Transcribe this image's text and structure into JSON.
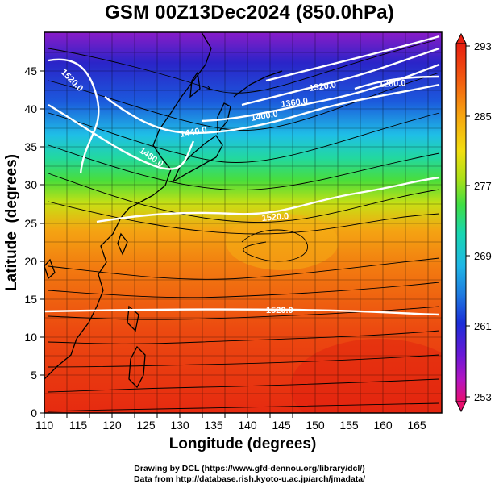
{
  "title": "GSM 00Z13Dec2024 (850.0hPa)",
  "xlabel": "Longitude (degrees)",
  "ylabel": "Latitude  (degrees)",
  "x_ticks": [
    "110",
    "115",
    "120",
    "125",
    "130",
    "135",
    "140",
    "145",
    "150",
    "155",
    "160",
    "165"
  ],
  "y_ticks": [
    "0",
    "5",
    "10",
    "15",
    "20",
    "25",
    "30",
    "35",
    "40",
    "45"
  ],
  "colorbar": {
    "ticks": [
      "293",
      "285",
      "277",
      "269",
      "261",
      "253"
    ],
    "colors": [
      "#e8106e",
      "#b515c0",
      "#6a18d6",
      "#1a2ed8",
      "#1e7be0",
      "#1fb7e6",
      "#18d6b0",
      "#3fde44",
      "#a8e018",
      "#f2de10",
      "#f6a410",
      "#f25a10",
      "#e81e10"
    ]
  },
  "contours": [
    {
      "label": "1520.0"
    },
    {
      "label": "1480.0"
    },
    {
      "label": "1440.0"
    },
    {
      "label": "1400.0"
    },
    {
      "label": "1360.0"
    },
    {
      "label": "1320.0"
    },
    {
      "label": "1280.0"
    },
    {
      "label": "1520.0"
    },
    {
      "label": "1520.0"
    }
  ],
  "credits": {
    "line1": "Drawing by DCL (https://www.gfd-dennou.org/library/dcl/)",
    "line2": "Data from http://database.rish.kyoto-u.ac.jp/arch/jmadata/"
  }
}
